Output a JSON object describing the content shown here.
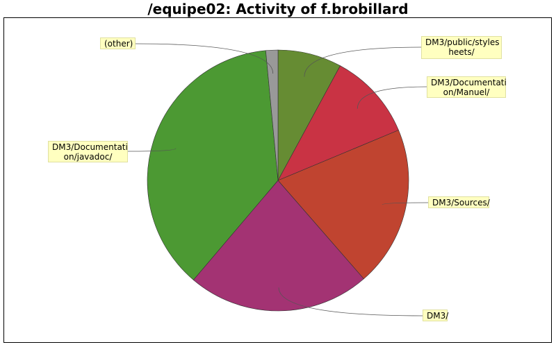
{
  "chart_data": {
    "type": "pie",
    "title": "/equipe02: Activity of f.brobillard",
    "slices": [
      {
        "label": "DM3/public/styles\nheets/",
        "value": 7.9,
        "color": "#668c33"
      },
      {
        "label": "DM3/Documentati\non/Manuel/",
        "value": 10.8,
        "color": "#c93344"
      },
      {
        "label": "DM3/Sources/",
        "value": 19.9,
        "color": "#c04430"
      },
      {
        "label": "DM3/",
        "value": 22.6,
        "color": "#a33373"
      },
      {
        "label": "DM3/Documentati\non/javadoc/",
        "value": 37.3,
        "color": "#4c9933"
      },
      {
        "label": "(other)",
        "value": 1.5,
        "color": "#999999"
      }
    ]
  }
}
